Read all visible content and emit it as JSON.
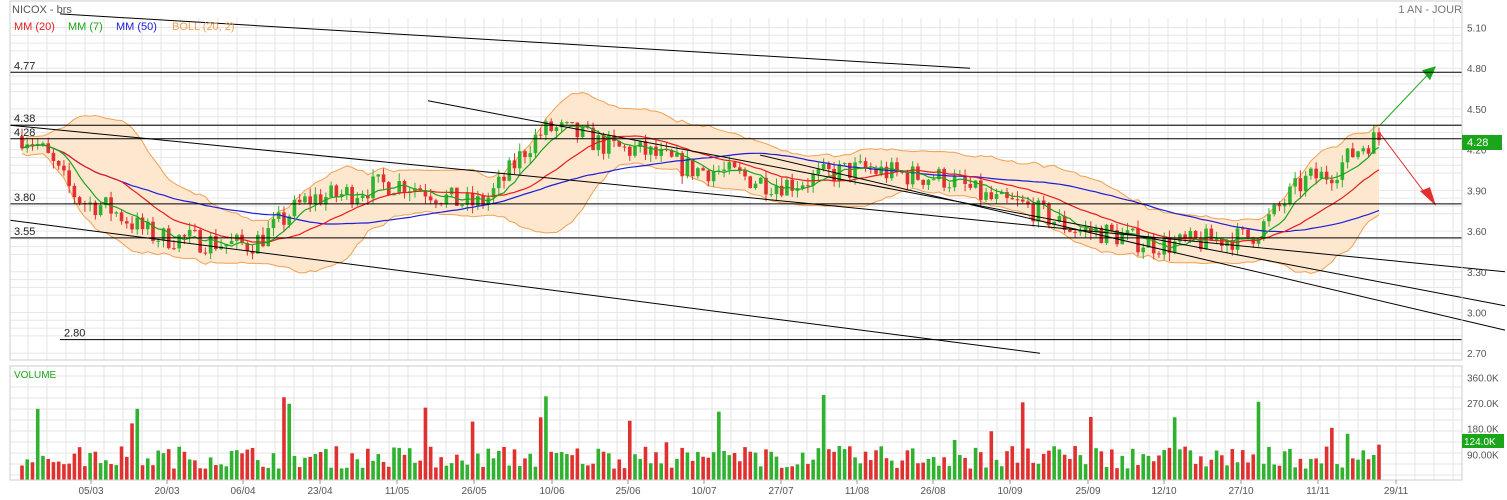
{
  "header": {
    "title": "NICOX - brs",
    "period": "1 AN - JOUR"
  },
  "legend": [
    {
      "label": "MM (20)",
      "color": "#e81c1c"
    },
    {
      "label": "MM (7)",
      "color": "#1aa51a"
    },
    {
      "label": "MM (50)",
      "color": "#1c1cd9"
    },
    {
      "label": "BOLL (20, 2)",
      "color": "#f0a050"
    }
  ],
  "price_ticks": [
    "5.10",
    "4.80",
    "4.50",
    "4.20",
    "3.90",
    "3.60",
    "3.30",
    "3.00",
    "2.70"
  ],
  "last_price": {
    "label": "4.28",
    "value": 4.28,
    "color": "#1aa51a"
  },
  "levels": [
    {
      "label": "4.77",
      "value": 4.77
    },
    {
      "label": "4.38",
      "value": 4.38
    },
    {
      "label": "4.28",
      "value": 4.28
    },
    {
      "label": "3.80",
      "value": 3.8
    },
    {
      "label": "3.55",
      "value": 3.55
    },
    {
      "label": "2.80",
      "value": 2.8
    }
  ],
  "volume": {
    "title": "VOLUME",
    "ticks": [
      "360.0K",
      "270.0K",
      "180.0K",
      "90.00K"
    ],
    "last": {
      "label": "124.0K",
      "value": 124000
    }
  },
  "x_dates": [
    "05/03",
    "20/03",
    "06/04",
    "23/04",
    "11/05",
    "26/05",
    "10/06",
    "25/06",
    "10/07",
    "27/07",
    "11/08",
    "26/08",
    "10/09",
    "25/09",
    "12/10",
    "27/10",
    "11/11",
    "29/11"
  ],
  "colors": {
    "up": "#2fb22f",
    "down": "#e03030",
    "band_fill": "#fde7cf",
    "band_edge": "#f0a050",
    "grid": "#e6e6e6"
  },
  "chart_data": {
    "type": "candlestick",
    "title": "NICOX - brs",
    "price_range": [
      2.65,
      5.17
    ],
    "volume_range": [
      0,
      400000
    ],
    "series": [
      {
        "name": "MM (20)",
        "kind": "moving-average"
      },
      {
        "name": "MM (7)",
        "kind": "moving-average"
      },
      {
        "name": "MM (50)",
        "kind": "moving-average"
      },
      {
        "name": "BOLL (20, 2)",
        "kind": "bollinger-band"
      }
    ],
    "anchors": [
      {
        "date": "05/03",
        "close": 3.8
      },
      {
        "date": "20/03",
        "close": 3.55
      },
      {
        "date": "06/04",
        "close": 3.5
      },
      {
        "date": "23/04",
        "close": 3.85
      },
      {
        "date": "11/05",
        "close": 3.95
      },
      {
        "date": "26/05",
        "close": 3.8
      },
      {
        "date": "10/06",
        "close": 4.35
      },
      {
        "date": "25/06",
        "close": 4.2
      },
      {
        "date": "10/07",
        "close": 4.05
      },
      {
        "date": "27/07",
        "close": 3.95
      },
      {
        "date": "11/08",
        "close": 4.05
      },
      {
        "date": "26/08",
        "close": 4.0
      },
      {
        "date": "10/09",
        "close": 3.8
      },
      {
        "date": "25/09",
        "close": 3.6
      },
      {
        "date": "12/10",
        "close": 3.5
      },
      {
        "date": "27/10",
        "close": 3.55
      },
      {
        "date": "11/11",
        "close": 4.0
      },
      {
        "date": "29/11",
        "close": 4.28
      }
    ]
  }
}
